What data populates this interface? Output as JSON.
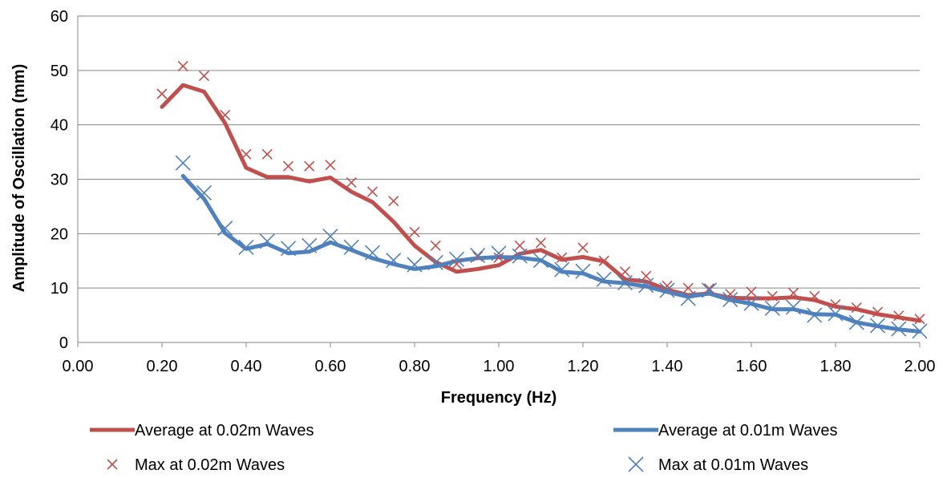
{
  "chart_data": {
    "type": "line",
    "title": "",
    "xlabel": "Frequency (Hz)",
    "ylabel": "Amplitude of Oscillation (mm)",
    "xlim": [
      0,
      2
    ],
    "ylim": [
      0,
      60
    ],
    "xticks": [
      "0.00",
      "0.20",
      "0.40",
      "0.60",
      "0.80",
      "1.00",
      "1.20",
      "1.40",
      "1.60",
      "1.80",
      "2.00"
    ],
    "yticks": [
      "0",
      "10",
      "20",
      "30",
      "40",
      "50",
      "60"
    ],
    "grid": "horizontal",
    "legend_position": "bottom",
    "series": [
      {
        "name": "Average at 0.02m Waves",
        "style": "line",
        "color": "#C0504D",
        "x": [
          0.2,
          0.25,
          0.3,
          0.35,
          0.4,
          0.45,
          0.5,
          0.55,
          0.6,
          0.65,
          0.7,
          0.75,
          0.8,
          0.85,
          0.9,
          0.95,
          1.0,
          1.05,
          1.1,
          1.15,
          1.2,
          1.25,
          1.3,
          1.35,
          1.4,
          1.45,
          1.5,
          1.55,
          1.6,
          1.65,
          1.7,
          1.75,
          1.8,
          1.85,
          1.9,
          1.95,
          2.0
        ],
        "y": [
          43.3,
          47.3,
          46.1,
          40.3,
          32.1,
          30.4,
          30.4,
          29.6,
          30.3,
          27.7,
          25.8,
          22.2,
          17.8,
          14.8,
          13.0,
          13.5,
          14.2,
          16.3,
          17.0,
          15.2,
          15.7,
          14.9,
          11.6,
          11.2,
          9.7,
          8.7,
          9.0,
          8.2,
          8.1,
          8.1,
          8.3,
          7.8,
          6.6,
          6.1,
          5.2,
          4.6,
          4.0
        ]
      },
      {
        "name": "Average at 0.01m Waves",
        "style": "line",
        "color": "#4F81BD",
        "x": [
          0.25,
          0.3,
          0.35,
          0.4,
          0.45,
          0.5,
          0.55,
          0.6,
          0.65,
          0.7,
          0.75,
          0.8,
          0.85,
          0.9,
          0.95,
          1.0,
          1.05,
          1.1,
          1.15,
          1.2,
          1.25,
          1.3,
          1.35,
          1.4,
          1.45,
          1.5,
          1.55,
          1.6,
          1.65,
          1.7,
          1.75,
          1.8,
          1.85,
          1.9,
          1.95,
          2.0
        ],
        "y": [
          30.6,
          26.4,
          20.1,
          17.2,
          18.1,
          16.4,
          16.7,
          18.4,
          17.0,
          15.5,
          14.4,
          13.5,
          14.0,
          15.0,
          15.5,
          15.7,
          15.6,
          15.1,
          13.0,
          12.7,
          11.2,
          10.9,
          10.3,
          9.3,
          8.4,
          9.0,
          7.8,
          7.1,
          6.1,
          6.1,
          5.2,
          5.1,
          3.7,
          3.0,
          2.4,
          2.0
        ]
      },
      {
        "name": "Max at 0.02m Waves",
        "style": "marker",
        "color": "#C0504D",
        "x": [
          0.2,
          0.25,
          0.3,
          0.35,
          0.4,
          0.45,
          0.5,
          0.55,
          0.6,
          0.65,
          0.7,
          0.75,
          0.8,
          0.85,
          0.9,
          0.95,
          1.0,
          1.05,
          1.1,
          1.15,
          1.2,
          1.25,
          1.3,
          1.35,
          1.4,
          1.45,
          1.5,
          1.55,
          1.6,
          1.65,
          1.7,
          1.75,
          1.8,
          1.85,
          1.9,
          1.95,
          2.0
        ],
        "y": [
          45.7,
          50.8,
          49.0,
          41.8,
          34.6,
          34.6,
          32.4,
          32.4,
          32.6,
          29.4,
          27.7,
          26.0,
          20.3,
          17.8,
          14.4,
          15.8,
          15.6,
          17.8,
          18.3,
          15.6,
          17.4,
          15.0,
          13.0,
          12.2,
          10.4,
          10.0,
          9.9,
          8.9,
          9.3,
          8.5,
          9.1,
          8.5,
          7.0,
          6.4,
          5.6,
          4.9,
          4.3
        ]
      },
      {
        "name": "Max at 0.01m Waves",
        "style": "marker",
        "color": "#4F81BD",
        "x": [
          0.25,
          0.3,
          0.35,
          0.4,
          0.45,
          0.5,
          0.55,
          0.6,
          0.65,
          0.7,
          0.75,
          0.8,
          0.85,
          0.9,
          0.95,
          1.0,
          1.05,
          1.1,
          1.15,
          1.2,
          1.25,
          1.3,
          1.35,
          1.4,
          1.45,
          1.5,
          1.55,
          1.6,
          1.65,
          1.7,
          1.75,
          1.8,
          1.85,
          1.9,
          1.95,
          2.0
        ],
        "y": [
          33.0,
          27.5,
          21.0,
          17.5,
          18.6,
          17.3,
          17.8,
          19.5,
          17.5,
          16.5,
          15.1,
          14.3,
          14.7,
          15.3,
          16.0,
          16.4,
          15.9,
          15.1,
          13.4,
          13.1,
          11.6,
          11.0,
          10.5,
          9.6,
          8.1,
          9.6,
          7.9,
          7.2,
          6.3,
          6.5,
          5.0,
          5.3,
          3.7,
          3.1,
          2.5,
          2.1
        ]
      }
    ]
  }
}
